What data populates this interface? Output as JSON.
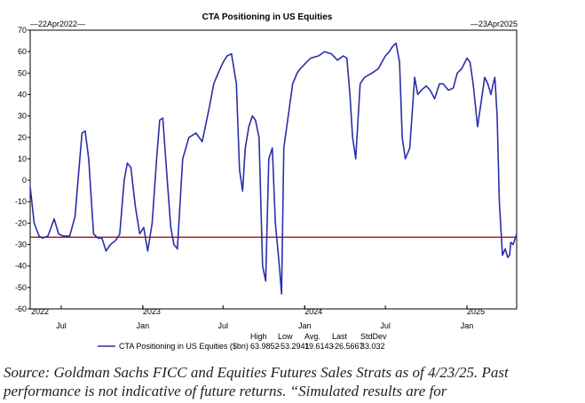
{
  "chart_data": {
    "type": "line",
    "title": "CTA Positioning in US Equities",
    "date_start": "22Apr2022",
    "date_end": "23Apr2025",
    "ylim": [
      -60,
      70
    ],
    "y_ticks": [
      70,
      60,
      50,
      40,
      30,
      20,
      10,
      0,
      -10,
      -20,
      -30,
      -40,
      -50,
      -60
    ],
    "x_ticks": [
      "2022",
      "Jul",
      "Jan",
      "2023",
      "Jul",
      "2024",
      "Jan",
      "Jul",
      "2025",
      "Jan"
    ],
    "line_colors": {
      "series": "#2a2fa8",
      "reference": "#b22222"
    },
    "series": [
      {
        "name": "CTA Positioning in US Equities ($bn)",
        "x": [
          "2022-04-22",
          "2022-05-01",
          "2022-05-12",
          "2022-05-20",
          "2022-06-01",
          "2022-06-15",
          "2022-06-25",
          "2022-07-05",
          "2022-07-20",
          "2022-08-01",
          "2022-08-10",
          "2022-08-17",
          "2022-08-24",
          "2022-09-01",
          "2022-09-12",
          "2022-09-22",
          "2022-10-01",
          "2022-10-10",
          "2022-10-20",
          "2022-11-01",
          "2022-11-10",
          "2022-11-20",
          "2022-11-27",
          "2022-12-05",
          "2022-12-15",
          "2022-12-25",
          "2023-01-03",
          "2023-01-12",
          "2023-01-22",
          "2023-02-01",
          "2023-02-08",
          "2023-02-15",
          "2023-02-25",
          "2023-03-05",
          "2023-03-12",
          "2023-03-20",
          "2023-04-01",
          "2023-04-15",
          "2023-05-01",
          "2023-05-15",
          "2023-06-01",
          "2023-06-10",
          "2023-06-20",
          "2023-07-01",
          "2023-07-10",
          "2023-07-20",
          "2023-07-31",
          "2023-08-07",
          "2023-08-14",
          "2023-08-20",
          "2023-08-28",
          "2023-09-05",
          "2023-09-12",
          "2023-09-20",
          "2023-09-28",
          "2023-10-05",
          "2023-10-12",
          "2023-10-20",
          "2023-10-27",
          "2023-11-05",
          "2023-11-10",
          "2023-11-15",
          "2023-11-25",
          "2023-12-05",
          "2023-12-15",
          "2023-12-22",
          "2024-01-05",
          "2024-01-15",
          "2024-02-01",
          "2024-02-15",
          "2024-03-01",
          "2024-03-15",
          "2024-03-28",
          "2024-04-05",
          "2024-04-12",
          "2024-04-18",
          "2024-04-25",
          "2024-05-05",
          "2024-05-15",
          "2024-06-01",
          "2024-06-15",
          "2024-07-01",
          "2024-07-10",
          "2024-07-16",
          "2024-07-25",
          "2024-08-02",
          "2024-08-08",
          "2024-08-15",
          "2024-08-25",
          "2024-09-05",
          "2024-09-12",
          "2024-09-20",
          "2024-10-01",
          "2024-10-10",
          "2024-10-20",
          "2024-10-31",
          "2024-11-08",
          "2024-11-20",
          "2024-12-01",
          "2024-12-10",
          "2024-12-20",
          "2025-01-01",
          "2025-01-08",
          "2025-01-15",
          "2025-01-25",
          "2025-02-01",
          "2025-02-10",
          "2025-02-17",
          "2025-02-24",
          "2025-03-01",
          "2025-03-05",
          "2025-03-10",
          "2025-03-15",
          "2025-03-22",
          "2025-03-28",
          "2025-04-03",
          "2025-04-07",
          "2025-04-10",
          "2025-04-15",
          "2025-04-23"
        ],
        "y": [
          -3,
          -20,
          -26,
          -27,
          -26,
          -18,
          -25,
          -26,
          -26,
          -17,
          5,
          22,
          23,
          10,
          -25,
          -27,
          -27,
          -33,
          -30,
          -28,
          -25,
          0,
          8,
          6,
          -12,
          -25,
          -22,
          -33,
          -20,
          10,
          28,
          29,
          0,
          -22,
          -30,
          -32,
          10,
          20,
          22,
          18,
          35,
          45,
          50,
          55,
          58,
          59,
          45,
          5,
          -5,
          15,
          25,
          30,
          28,
          20,
          -40,
          -47,
          10,
          15,
          -20,
          -40,
          -53,
          15,
          30,
          45,
          50,
          52,
          55,
          57,
          58,
          60,
          59,
          56,
          58,
          57,
          40,
          20,
          10,
          45,
          48,
          50,
          52,
          58,
          60,
          62,
          64,
          55,
          20,
          10,
          15,
          48,
          40,
          42,
          44,
          42,
          38,
          45,
          45,
          42,
          43,
          50,
          52,
          57,
          55,
          45,
          25,
          35,
          48,
          45,
          40,
          45,
          48,
          30,
          -10,
          -35,
          -32,
          -36,
          -35,
          -29,
          -30,
          -25
        ]
      },
      {
        "name": "Last",
        "y": -26.5667
      }
    ],
    "stats": {
      "name": "CTA Positioning in US Equities ($bn)",
      "labels": [
        "High",
        "Low",
        "Avg.",
        "Last",
        "StdDev"
      ],
      "values": [
        "63.9852",
        "-53.2941",
        "19.6143",
        "-26.5667",
        "33.032"
      ]
    }
  },
  "source_text": "Source: Goldman Sachs FICC and Equities Futures Sales Strats as of 4/23/25. Past performance is not indicative of future returns. “Simulated results are for"
}
